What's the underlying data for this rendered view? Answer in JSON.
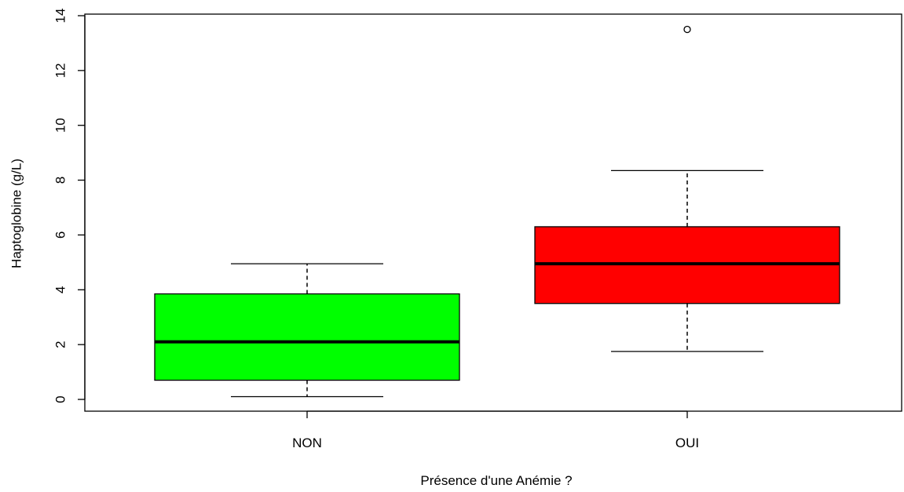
{
  "chart_data": {
    "type": "boxplot",
    "title": "",
    "xlabel": "Présence d'une Anémie ?",
    "ylabel": "Haptoglobine (g/L)",
    "ylim": [
      0,
      14
    ],
    "yticks": [
      0,
      2,
      4,
      6,
      8,
      10,
      12,
      14
    ],
    "ytick_labels": [
      "0",
      "2",
      "4",
      "6",
      "8",
      "10",
      "12",
      "14"
    ],
    "grid": false,
    "legend": "none",
    "categories": [
      "NON",
      "OUI"
    ],
    "boxes": [
      {
        "category": "NON",
        "color": "#00ff00",
        "whisker_low": 0.1,
        "q1": 0.7,
        "median": 2.1,
        "q3": 3.85,
        "whisker_high": 4.95,
        "outliers": []
      },
      {
        "category": "OUI",
        "color": "#ff0000",
        "whisker_low": 1.75,
        "q1": 3.5,
        "median": 4.95,
        "q3": 6.3,
        "whisker_high": 8.35,
        "outliers": [
          13.5
        ]
      }
    ]
  }
}
